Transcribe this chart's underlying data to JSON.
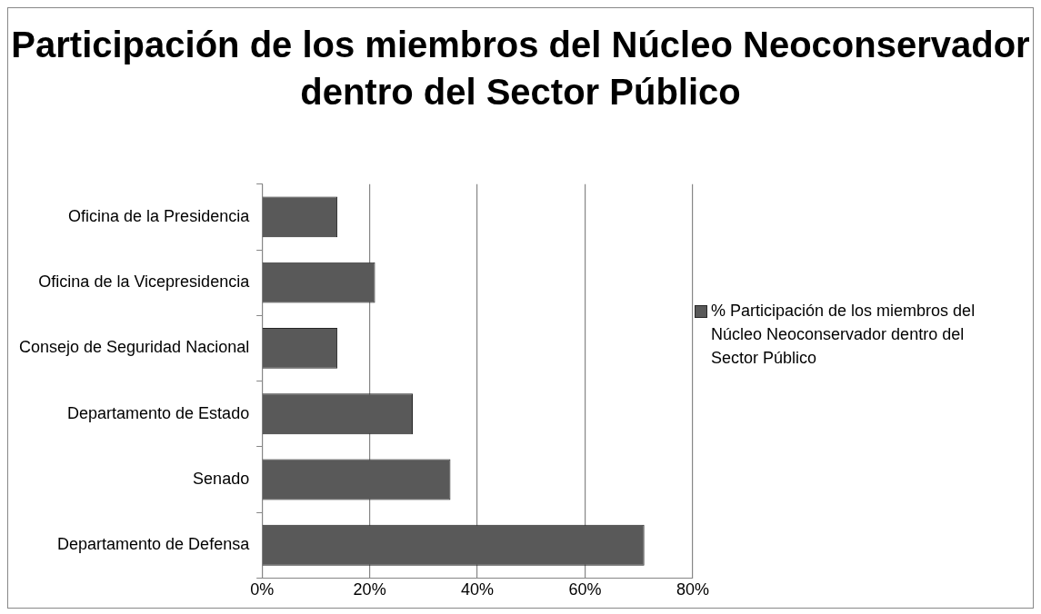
{
  "chart_data": {
    "type": "bar",
    "orientation": "horizontal",
    "title": "Participación de los miembros del Núcleo Neoconservador dentro del Sector Público",
    "categories": [
      "Oficina de la Presidencia",
      "Oficina de la Vicepresidencia",
      "Consejo de Seguridad Nacional",
      "Departamento de Estado",
      "Senado",
      "Departamento de Defensa"
    ],
    "series": [
      {
        "name": "% Participación de los miembros del Núcleo Neoconservador dentro del Sector Público",
        "color": "#595959",
        "values": [
          14,
          21,
          14,
          28,
          35,
          71
        ]
      }
    ],
    "xlim": [
      0,
      80
    ],
    "xticks": [
      {
        "value": 0,
        "label": "0%"
      },
      {
        "value": 20,
        "label": "20%"
      },
      {
        "value": 40,
        "label": "40%"
      },
      {
        "value": 60,
        "label": "60%"
      },
      {
        "value": 80,
        "label": "80%"
      }
    ],
    "grid": "x",
    "legend": "right"
  }
}
